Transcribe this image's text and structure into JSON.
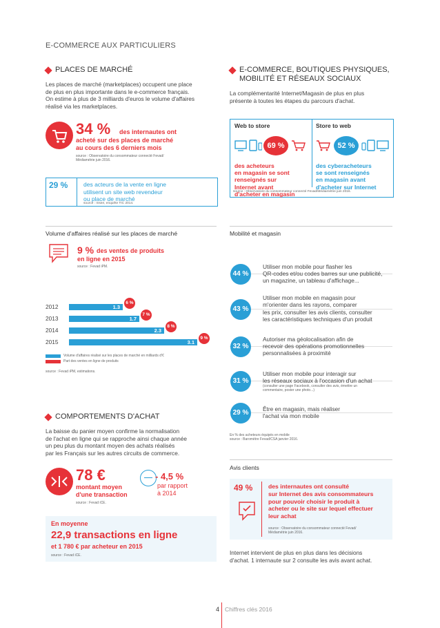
{
  "page_header": "E-COMMERCE AUX PARTICULIERS",
  "places": {
    "title": "PLACES DE MARCHÉ",
    "text": [
      "Les places de marché (marketplaces) occupent une place",
      "de plus en plus importante dans le e-commerce français.",
      "On estime à plus de 3 milliards d'euros le volume d'affaires",
      "réalisé via les marketplaces."
    ],
    "stat_pct": "34 %",
    "stat_line1": "des internautes ont",
    "stat_line2": "acheté sur des places de marché",
    "stat_line3": "au cours des 6 derniers mois",
    "stat_source1": "source : Observatoire du consommateur connecté Fevad/",
    "stat_source2": "Médiamétrie juin 2016.",
    "box_pct": "29 %",
    "box_line1": "des acteurs de la vente en ligne",
    "box_line2": "utilisent un site web revendeur",
    "box_line3": "ou place de marché",
    "box_source": "source : Insee, enquête TIC 2014."
  },
  "ecom": {
    "title1": "E-COMMERCE, BOUTIQUES PHYSIQUES,",
    "title2": "MOBILITÉ ET RÉSEAUX SOCIAUX",
    "text": [
      "La complémentarité Internet/Magasin de plus en plus",
      "présente à toutes les étapes du parcours d'achat."
    ],
    "web_to_store": "Web to store",
    "store_to_web": "Store to web",
    "wts_pct": "69 %",
    "stw_pct": "52 %",
    "wts_text": [
      "des acheteurs",
      "en magasin se sont",
      "renseignés sur",
      "Internet avant",
      "d'acheter en magasin"
    ],
    "stw_text": [
      "des cyberacheteurs",
      "se sont renseignés",
      "en magasin avant",
      "d'acheter sur Internet"
    ],
    "source": "source : Observatoire du consommateur connecté Fevad/Médiamétrie juin 2016."
  },
  "volume": {
    "title": "Volume d'affaires réalisé sur les places de marché",
    "stat_pct": "9 %",
    "stat_line1": "des ventes de produits",
    "stat_line2": "en ligne en 2015",
    "stat_source": "source : Fevad iPM.",
    "legend_blue": "Volume d'affaires réalisé sur les places de marché en milliards d'€",
    "legend_red": "Part des ventes en ligne de produits",
    "source": "source : Fevad iPM, estimations."
  },
  "chart_data": {
    "type": "bar",
    "categories": [
      "2012",
      "2013",
      "2014",
      "2015"
    ],
    "series": [
      {
        "name": "Volume d'affaires réalisé sur les places de marché en milliards d'€",
        "values": [
          1.3,
          1.7,
          2.3,
          3.1
        ],
        "labels": [
          "1.3",
          "1.7",
          "2.3",
          "3.1"
        ]
      },
      {
        "name": "Part des ventes en ligne de produits",
        "values": [
          6,
          7,
          8,
          9
        ],
        "labels": [
          "6 %",
          "7 %",
          "8 %",
          "9 %"
        ]
      }
    ],
    "colors": {
      "blue": "#2a9fd6",
      "red": "#e63238"
    }
  },
  "mobilite": {
    "title": "Mobilité et magasin",
    "items": [
      {
        "pct": "44 %",
        "lines": [
          "Utiliser mon mobile pour flasher les",
          "QR-codes et/ou codes barres sur une publicité,",
          "un magazine, un tableau d'affichage..."
        ],
        "small": []
      },
      {
        "pct": "43 %",
        "lines": [
          "Utiliser mon mobile en magasin pour",
          "m'orienter dans les rayons, comparer",
          "les prix, consulter les avis clients, consulter",
          "les caractéristiques techniques d'un produit"
        ],
        "small": []
      },
      {
        "pct": "32 %",
        "lines": [
          "Autoriser ma géolocalisation afin de",
          "recevoir des opérations promotionnelles",
          "personnalisées à proximité"
        ],
        "small": []
      },
      {
        "pct": "31 %",
        "lines": [
          "Utiliser mon mobile pour interagir sur",
          "les réseaux sociaux à l'occasion d'un achat"
        ],
        "small": [
          "(consulter une page Facebook, consulter des avis, émettre un",
          "commentaire, poster une photo...)"
        ]
      },
      {
        "pct": "29 %",
        "lines": [
          "Être en magasin, mais réaliser",
          "l'achat via mon mobile"
        ],
        "small": []
      }
    ],
    "note1": "En % des acheteurs équipés en mobile",
    "note2": "source : Baromètre Fevad/CSA janvier 2016."
  },
  "comportements": {
    "title": "COMPORTEMENTS D'ACHAT",
    "text": [
      "La baisse du panier moyen confirme la normalisation",
      "de l'achat en ligne qui se rapproche ainsi chaque année",
      "un peu plus du montant moyen des achats réalisés",
      "par les Français sur les autres circuits de commerce."
    ],
    "amount": "78 €",
    "amount_line1": "montant moyen",
    "amount_line2": "d'une transaction",
    "amount_source": "source : Fevad iCE.",
    "change": "- 4,5 %",
    "change_line1": "par rapport",
    "change_line2": "à 2014",
    "avg_label": "En moyenne",
    "avg_main": "22,9 transactions en ligne",
    "avg_sub": "et 1 780 € par acheteur en 2015",
    "avg_source": "source : Fevad iCE."
  },
  "avis": {
    "title": "Avis clients",
    "pct": "49 %",
    "lines": [
      "des internautes ont consulté",
      "sur Internet des avis consommateurs",
      "pour pouvoir choisir le produit à",
      "acheter ou le site sur lequel effectuer",
      "leur achat"
    ],
    "source1": "source : Observatoire du consommateur connecté Fevad/",
    "source2": "Médiamétrie juin 2016.",
    "text": [
      "Internet intervient de plus en plus dans les décisions",
      "d'achat. 1 internaute sur 2 consulte les avis avant achat."
    ]
  },
  "footer": {
    "page": "4",
    "label": "Chiffres clés 2016"
  }
}
